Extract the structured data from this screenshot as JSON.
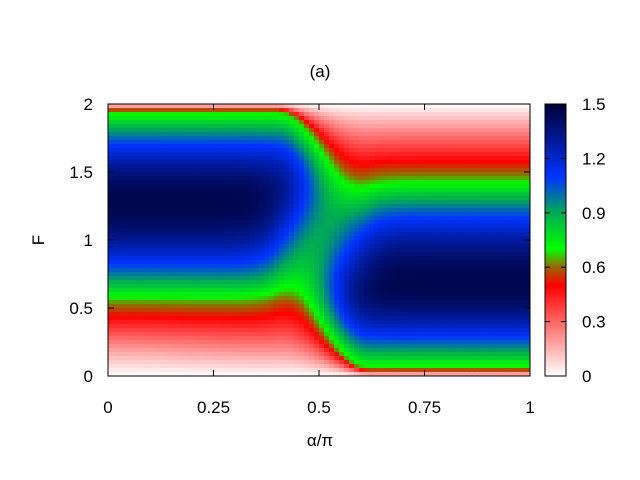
{
  "chart_data": {
    "type": "heatmap",
    "title": "(a)",
    "xlabel": "α/π",
    "ylabel": "F",
    "xlim": [
      0,
      1
    ],
    "ylim": [
      0,
      2
    ],
    "x_ticks": [
      {
        "value": 0,
        "label": "0"
      },
      {
        "value": 0.25,
        "label": "0.25"
      },
      {
        "value": 0.5,
        "label": "0.5"
      },
      {
        "value": 0.75,
        "label": "0.75"
      },
      {
        "value": 1,
        "label": "1"
      }
    ],
    "y_ticks": [
      {
        "value": 0,
        "label": "0"
      },
      {
        "value": 0.5,
        "label": "0.5"
      },
      {
        "value": 1,
        "label": "1"
      },
      {
        "value": 1.5,
        "label": "1.5"
      },
      {
        "value": 2,
        "label": "2"
      }
    ],
    "colorbar": {
      "range": [
        0,
        1.5
      ],
      "ticks": [
        {
          "value": 0,
          "label": "0"
        },
        {
          "value": 0.3,
          "label": "0.3"
        },
        {
          "value": 0.6,
          "label": "0.6"
        },
        {
          "value": 0.9,
          "label": "0.9"
        },
        {
          "value": 1.2,
          "label": "1.2"
        },
        {
          "value": 1.5,
          "label": "1.5"
        }
      ],
      "colors": [
        {
          "value": 0.0,
          "color": "#ffffff"
        },
        {
          "value": 0.5,
          "color": "#ff0000"
        },
        {
          "value": 0.6,
          "color": "#996600"
        },
        {
          "value": 0.7,
          "color": "#00ff00"
        },
        {
          "value": 0.9,
          "color": "#00aa55"
        },
        {
          "value": 1.1,
          "color": "#0033ff"
        },
        {
          "value": 1.5,
          "color": "#000033"
        }
      ]
    },
    "field": {
      "description_x": "alpha/pi",
      "description_y": "F",
      "regions": [
        {
          "x_range": [
            0,
            0.5
          ],
          "low_edge_F": 0.55,
          "high_edge_F": 1.95,
          "peak_F": 1.28,
          "peak_value": 1.45
        },
        {
          "x_range": [
            0.5,
            1
          ],
          "low_edge_F": 0.05,
          "high_edge_F": 1.45,
          "peak_F": 0.68,
          "peak_value": 1.45
        }
      ]
    },
    "grid": false,
    "legend": "colorbar-right"
  }
}
